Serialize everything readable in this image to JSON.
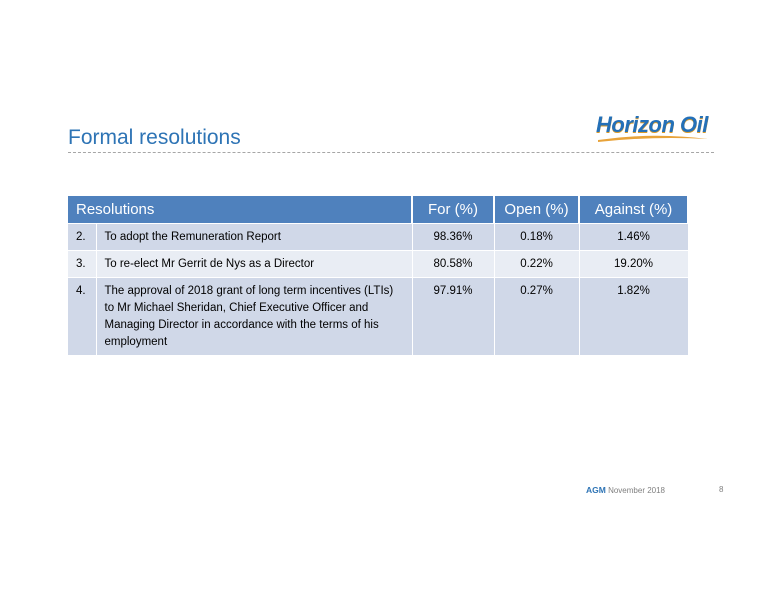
{
  "header": {
    "title": "Formal resolutions",
    "logo_text": "Horizon Oil"
  },
  "table": {
    "headers": {
      "resolution": "Resolutions",
      "for": "For (%)",
      "open": "Open (%)",
      "against": "Against (%)"
    },
    "rows": [
      {
        "num": "2.",
        "text": "To adopt the Remuneration Report",
        "for": "98.36%",
        "open": "0.18%",
        "against": "1.46%"
      },
      {
        "num": "3.",
        "text": "To re-elect Mr Gerrit de Nys as a Director",
        "for": "80.58%",
        "open": "0.22%",
        "against": "19.20%"
      },
      {
        "num": "4.",
        "text": "The approval of 2018 grant of long term incentives (LTIs) to Mr Michael Sheridan, Chief Executive Officer and Managing Director in accordance with the terms of his employment",
        "for": "97.91%",
        "open": "0.27%",
        "against": "1.82%"
      }
    ]
  },
  "footer": {
    "agm": "AGM",
    "date": "November 2018",
    "page": "8"
  },
  "colors": {
    "title": "#2e74b5",
    "header_bg": "#4f81bd",
    "row_odd": "#d0d8e8",
    "row_even": "#e9edf4",
    "logo_orange": "#e8a33a"
  }
}
